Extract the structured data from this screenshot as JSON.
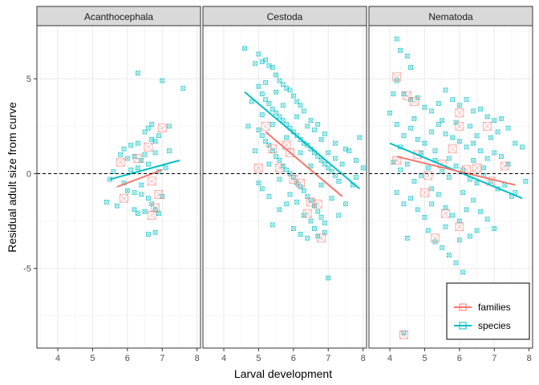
{
  "chart_data": {
    "type": "scatter",
    "xlabel": "Larval development",
    "ylabel": "Residual adult size from curve",
    "xlim": [
      3.4,
      8.1
    ],
    "ylim": [
      -9.2,
      7.8
    ],
    "x_ticks": [
      4,
      5,
      6,
      7,
      8
    ],
    "y_ticks": [
      -5,
      0,
      5
    ],
    "reference_line": 0,
    "grid": true,
    "legend_position": "bottom-right",
    "facets": [
      "Acanthocephala",
      "Cestoda",
      "Nematoda"
    ],
    "series_style": [
      {
        "name": "families",
        "color": "#F8766D"
      },
      {
        "name": "species",
        "color": "#00BFC4"
      }
    ],
    "points": {
      "Acanthocephala": {
        "species": [
          [
            6.3,
            5.3
          ],
          [
            6.5,
            2.2
          ],
          [
            6.6,
            2.4
          ],
          [
            6.7,
            2.6
          ],
          [
            6.9,
            2.0
          ],
          [
            7.0,
            4.9
          ],
          [
            7.6,
            4.5
          ],
          [
            7.2,
            2.5
          ],
          [
            6.8,
            1.1
          ],
          [
            6.5,
            1.0
          ],
          [
            6.2,
            0.9
          ],
          [
            6.0,
            0.8
          ],
          [
            5.9,
            1.3
          ],
          [
            5.8,
            1.0
          ],
          [
            6.4,
            0.7
          ],
          [
            6.6,
            0.5
          ],
          [
            6.3,
            0.3
          ],
          [
            6.1,
            0.2
          ],
          [
            5.6,
            0.1
          ],
          [
            5.5,
            -0.3
          ],
          [
            5.9,
            -0.5
          ],
          [
            6.0,
            -0.9
          ],
          [
            6.2,
            -1.0
          ],
          [
            6.4,
            -1.1
          ],
          [
            6.6,
            -1.3
          ],
          [
            6.7,
            -1.6
          ],
          [
            6.8,
            -1.9
          ],
          [
            6.9,
            -2.1
          ],
          [
            6.5,
            -2.0
          ],
          [
            6.3,
            -2.1
          ],
          [
            6.2,
            -1.9
          ],
          [
            5.4,
            -1.5
          ],
          [
            5.7,
            -1.7
          ],
          [
            6.8,
            -3.1
          ],
          [
            6.6,
            -3.2
          ],
          [
            7.0,
            -1.2
          ],
          [
            7.1,
            0.3
          ],
          [
            6.9,
            0.1
          ],
          [
            6.4,
            -0.6
          ],
          [
            6.7,
            1.8
          ],
          [
            6.3,
            1.6
          ],
          [
            6.1,
            1.5
          ],
          [
            6.8,
            1.7
          ],
          [
            7.2,
            1.2
          ]
        ],
        "families": [
          [
            5.8,
            0.6
          ],
          [
            5.9,
            -1.3
          ],
          [
            6.6,
            1.4
          ],
          [
            6.7,
            -0.4
          ],
          [
            6.8,
            -1.8
          ],
          [
            7.0,
            2.4
          ],
          [
            6.9,
            -1.1
          ],
          [
            6.7,
            -2.2
          ],
          [
            6.3,
            0.8
          ]
        ],
        "fits": {
          "families": [
            [
              5.7,
              -0.7
            ],
            [
              7.0,
              0.2
            ]
          ],
          "species": [
            [
              5.5,
              -0.3
            ],
            [
              7.5,
              0.7
            ]
          ]
        }
      },
      "Cestoda": {
        "species": [
          [
            4.6,
            6.6
          ],
          [
            4.9,
            5.8
          ],
          [
            5.0,
            6.3
          ],
          [
            5.1,
            5.9
          ],
          [
            5.2,
            6.0
          ],
          [
            5.3,
            5.7
          ],
          [
            5.4,
            5.6
          ],
          [
            5.5,
            5.2
          ],
          [
            5.6,
            4.9
          ],
          [
            5.7,
            4.7
          ],
          [
            5.8,
            4.5
          ],
          [
            5.9,
            4.4
          ],
          [
            6.0,
            4.1
          ],
          [
            6.1,
            3.8
          ],
          [
            6.2,
            3.6
          ],
          [
            6.3,
            3.3
          ],
          [
            6.5,
            2.8
          ],
          [
            6.7,
            2.6
          ],
          [
            6.9,
            2.1
          ],
          [
            7.2,
            1.6
          ],
          [
            7.5,
            1.3
          ],
          [
            7.8,
            0.7
          ],
          [
            5.0,
            4.6
          ],
          [
            5.1,
            4.2
          ],
          [
            5.2,
            3.9
          ],
          [
            5.3,
            3.7
          ],
          [
            5.4,
            3.4
          ],
          [
            5.5,
            3.2
          ],
          [
            5.6,
            3.0
          ],
          [
            5.7,
            2.8
          ],
          [
            5.8,
            2.6
          ],
          [
            5.9,
            2.4
          ],
          [
            6.0,
            2.2
          ],
          [
            6.1,
            2.0
          ],
          [
            6.2,
            1.8
          ],
          [
            6.3,
            1.6
          ],
          [
            6.4,
            1.5
          ],
          [
            6.5,
            1.3
          ],
          [
            6.6,
            1.1
          ],
          [
            6.7,
            0.9
          ],
          [
            6.8,
            0.7
          ],
          [
            6.9,
            0.5
          ],
          [
            7.0,
            0.3
          ],
          [
            7.1,
            0.1
          ],
          [
            7.2,
            -0.1
          ],
          [
            7.3,
            -0.4
          ],
          [
            5.0,
            2.3
          ],
          [
            5.1,
            2.0
          ],
          [
            5.2,
            1.7
          ],
          [
            5.3,
            1.5
          ],
          [
            5.4,
            1.2
          ],
          [
            5.5,
            0.9
          ],
          [
            5.6,
            0.7
          ],
          [
            5.7,
            0.4
          ],
          [
            5.8,
            0.2
          ],
          [
            5.9,
            0.0
          ],
          [
            6.0,
            -0.2
          ],
          [
            6.1,
            -0.5
          ],
          [
            6.2,
            -0.7
          ],
          [
            6.3,
            -0.9
          ],
          [
            6.4,
            -1.2
          ],
          [
            6.5,
            -1.4
          ],
          [
            6.6,
            -1.7
          ],
          [
            6.7,
            -2.0
          ],
          [
            6.8,
            -2.3
          ],
          [
            6.9,
            -2.6
          ],
          [
            5.0,
            -0.5
          ],
          [
            5.1,
            -0.8
          ],
          [
            5.3,
            -1.2
          ],
          [
            5.4,
            -2.7
          ],
          [
            5.6,
            -1.9
          ],
          [
            5.8,
            -1.6
          ],
          [
            6.0,
            -2.9
          ],
          [
            6.2,
            -3.2
          ],
          [
            6.4,
            -3.4
          ],
          [
            6.6,
            -2.9
          ],
          [
            6.9,
            -3.1
          ],
          [
            7.0,
            -5.5
          ],
          [
            7.3,
            -2.2
          ],
          [
            7.5,
            -1.6
          ],
          [
            7.7,
            -0.6
          ],
          [
            7.8,
            -0.2
          ],
          [
            7.4,
            0.5
          ],
          [
            7.6,
            1.2
          ],
          [
            7.9,
            1.9
          ],
          [
            8.0,
            0.3
          ],
          [
            4.8,
            3.8
          ],
          [
            4.7,
            2.5
          ],
          [
            4.9,
            1.2
          ],
          [
            5.2,
            4.8
          ],
          [
            5.5,
            4.3
          ],
          [
            5.7,
            3.6
          ],
          [
            6.1,
            3.0
          ],
          [
            6.4,
            2.5
          ],
          [
            6.6,
            2.3
          ],
          [
            6.8,
            1.8
          ],
          [
            7.0,
            1.1
          ],
          [
            7.2,
            0.8
          ],
          [
            5.3,
            0.5
          ],
          [
            5.6,
            -0.3
          ],
          [
            5.9,
            -1.1
          ],
          [
            6.1,
            -1.5
          ],
          [
            6.3,
            -2.2
          ],
          [
            6.5,
            -2.5
          ],
          [
            6.7,
            -3.3
          ],
          [
            5.1,
            3.1
          ],
          [
            5.4,
            2.6
          ],
          [
            5.8,
            1.9
          ],
          [
            6.2,
            1.1
          ],
          [
            6.5,
            0.4
          ],
          [
            6.8,
            -0.6
          ],
          [
            7.1,
            -1.3
          ]
        ],
        "families": [
          [
            5.2,
            2.5
          ],
          [
            5.4,
            1.3
          ],
          [
            5.6,
            0.3
          ],
          [
            5.9,
            1.1
          ],
          [
            6.0,
            -0.3
          ],
          [
            6.2,
            -0.5
          ],
          [
            6.5,
            -1.5
          ],
          [
            6.7,
            -1.6
          ],
          [
            6.4,
            -2.1
          ],
          [
            6.8,
            -3.4
          ],
          [
            5.0,
            0.3
          ],
          [
            5.8,
            1.5
          ]
        ],
        "fits": {
          "families": [
            [
              5.2,
              2.2
            ],
            [
              7.4,
              -1.2
            ]
          ],
          "species": [
            [
              4.6,
              4.3
            ],
            [
              7.9,
              -0.8
            ]
          ]
        }
      },
      "Nematoda": {
        "species": [
          [
            4.2,
            7.1
          ],
          [
            4.3,
            6.5
          ],
          [
            4.5,
            6.2
          ],
          [
            4.6,
            5.6
          ],
          [
            4.2,
            4.9
          ],
          [
            4.1,
            4.2
          ],
          [
            4.4,
            4.2
          ],
          [
            4.6,
            3.9
          ],
          [
            4.8,
            4.0
          ],
          [
            5.0,
            3.5
          ],
          [
            5.2,
            3.3
          ],
          [
            5.4,
            3.7
          ],
          [
            5.6,
            4.4
          ],
          [
            5.8,
            3.9
          ],
          [
            6.0,
            3.6
          ],
          [
            6.2,
            3.9
          ],
          [
            6.4,
            3.3
          ],
          [
            6.6,
            3.4
          ],
          [
            6.8,
            3.0
          ],
          [
            7.0,
            2.8
          ],
          [
            7.2,
            2.9
          ],
          [
            7.4,
            2.4
          ],
          [
            7.6,
            1.6
          ],
          [
            7.8,
            1.4
          ],
          [
            4.0,
            3.2
          ],
          [
            4.2,
            2.6
          ],
          [
            4.4,
            2.0
          ],
          [
            4.6,
            2.4
          ],
          [
            4.8,
            1.8
          ],
          [
            5.0,
            1.6
          ],
          [
            5.2,
            2.2
          ],
          [
            5.4,
            2.6
          ],
          [
            5.6,
            2.1
          ],
          [
            5.8,
            1.9
          ],
          [
            6.0,
            1.7
          ],
          [
            6.2,
            1.4
          ],
          [
            6.4,
            1.6
          ],
          [
            6.6,
            1.2
          ],
          [
            6.8,
            0.8
          ],
          [
            7.0,
            1.1
          ],
          [
            7.2,
            0.9
          ],
          [
            7.4,
            0.5
          ],
          [
            4.1,
            0.6
          ],
          [
            4.3,
            0.2
          ],
          [
            4.5,
            0.5
          ],
          [
            4.7,
            -0.4
          ],
          [
            4.9,
            -0.1
          ],
          [
            5.1,
            0.3
          ],
          [
            5.3,
            0.7
          ],
          [
            5.5,
            0.1
          ],
          [
            5.7,
            -0.2
          ],
          [
            5.9,
            0.4
          ],
          [
            6.1,
            0.2
          ],
          [
            6.3,
            -0.3
          ],
          [
            6.5,
            -0.5
          ],
          [
            6.7,
            -0.1
          ],
          [
            6.9,
            -0.4
          ],
          [
            7.1,
            -0.8
          ],
          [
            7.3,
            -0.6
          ],
          [
            7.5,
            -1.2
          ],
          [
            4.2,
            -1.0
          ],
          [
            4.4,
            -1.6
          ],
          [
            4.6,
            -1.3
          ],
          [
            4.8,
            -1.9
          ],
          [
            5.0,
            -2.3
          ],
          [
            5.2,
            -1.6
          ],
          [
            5.4,
            -1.1
          ],
          [
            5.6,
            -1.8
          ],
          [
            5.8,
            -2.2
          ],
          [
            6.0,
            -2.5
          ],
          [
            6.2,
            -1.9
          ],
          [
            6.4,
            -1.4
          ],
          [
            6.6,
            -2.0
          ],
          [
            6.8,
            -2.4
          ],
          [
            7.0,
            -2.9
          ],
          [
            5.1,
            -3.0
          ],
          [
            5.3,
            -3.6
          ],
          [
            5.5,
            -3.9
          ],
          [
            5.7,
            -4.3
          ],
          [
            5.9,
            -4.7
          ],
          [
            6.1,
            -5.2
          ],
          [
            6.3,
            -3.3
          ],
          [
            4.5,
            -3.4
          ],
          [
            4.4,
            -8.4
          ],
          [
            6.5,
            -3.0
          ],
          [
            6.0,
            -3.5
          ],
          [
            5.6,
            -2.8
          ],
          [
            5.2,
            -0.8
          ],
          [
            4.9,
            1.1
          ],
          [
            5.7,
            0.8
          ],
          [
            6.1,
            -1.0
          ],
          [
            6.4,
            0.7
          ],
          [
            6.7,
            0.3
          ],
          [
            7.6,
            -1.0
          ],
          [
            7.9,
            -0.4
          ],
          [
            4.3,
            1.4
          ],
          [
            4.7,
            2.9
          ],
          [
            5.3,
            1.2
          ],
          [
            5.5,
            2.8
          ],
          [
            5.9,
            2.7
          ],
          [
            6.3,
            2.5
          ],
          [
            6.5,
            2.0
          ],
          [
            6.9,
            1.9
          ],
          [
            7.1,
            2.2
          ]
        ],
        "families": [
          [
            4.2,
            5.1
          ],
          [
            4.5,
            4.1
          ],
          [
            4.7,
            3.8
          ],
          [
            4.2,
            0.7
          ],
          [
            4.8,
            1.0
          ],
          [
            5.1,
            -0.1
          ],
          [
            5.5,
            0.5
          ],
          [
            5.8,
            1.3
          ],
          [
            6.0,
            3.2
          ],
          [
            6.0,
            2.5
          ],
          [
            6.2,
            0.2
          ],
          [
            6.5,
            0.3
          ],
          [
            6.8,
            2.5
          ],
          [
            5.0,
            -1.0
          ],
          [
            5.6,
            -2.1
          ],
          [
            6.0,
            -2.8
          ],
          [
            5.3,
            -3.4
          ],
          [
            6.9,
            -0.4
          ],
          [
            7.3,
            0.4
          ],
          [
            4.4,
            -8.5
          ]
        ],
        "fits": {
          "families": [
            [
              4.2,
              0.9
            ],
            [
              7.6,
              -0.6
            ]
          ],
          "species": [
            [
              4.0,
              1.6
            ],
            [
              7.8,
              -1.3
            ]
          ]
        }
      }
    },
    "legend": [
      {
        "label": "families",
        "color": "#F8766D"
      },
      {
        "label": "species",
        "color": "#00BFC4"
      }
    ]
  }
}
